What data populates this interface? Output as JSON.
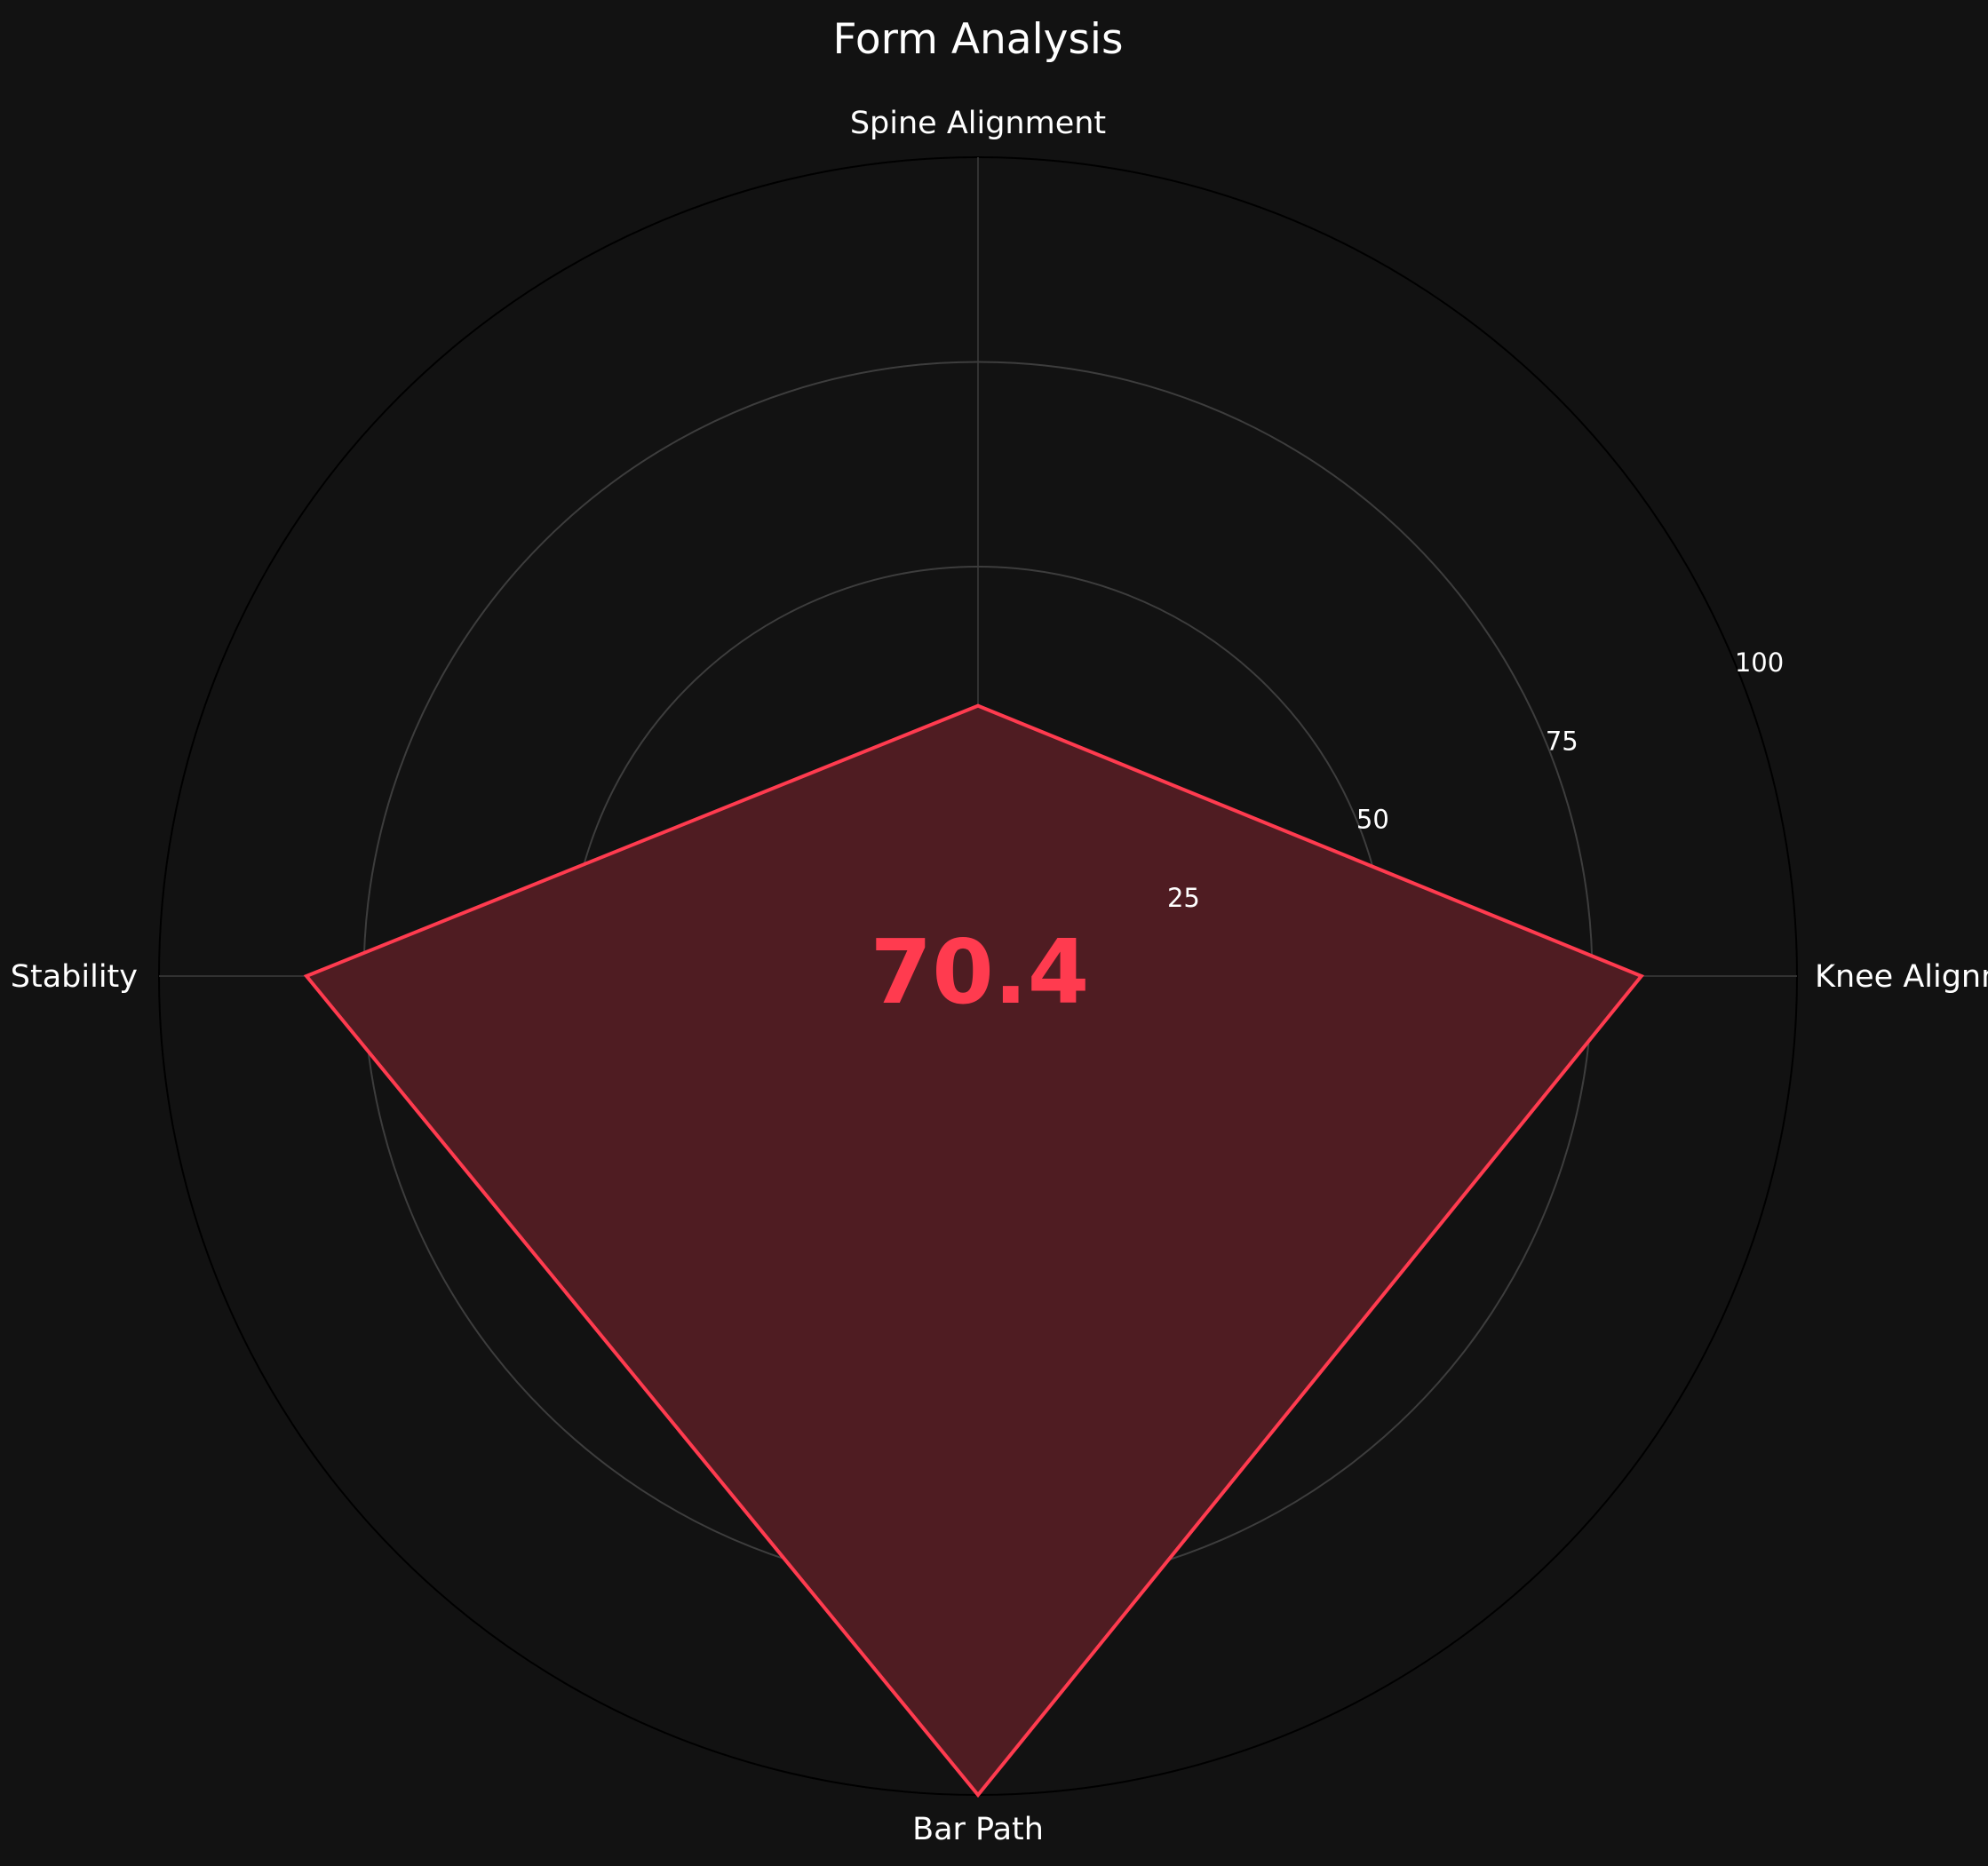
{
  "chart_data": {
    "type": "radar",
    "title": "Form Analysis",
    "categories": [
      "Knee Alignment",
      "Spine Alignment",
      "Hip Stability",
      "Bar Path"
    ],
    "series": [
      {
        "values": [
          81,
          33,
          82,
          100
        ]
      }
    ],
    "rlim": [
      0,
      100
    ],
    "rticks": [
      25,
      50,
      75,
      100
    ],
    "rtick_labels": [
      "25",
      "50",
      "75",
      "100"
    ],
    "overall_score": "70.4",
    "grid": true,
    "colors": {
      "background": "#121212",
      "line": "#ff3b4f",
      "fill": "#4f1c22",
      "grid": "#3d3d3d",
      "outer_ring": "#000000",
      "text": "#ffffff",
      "score": "#ff3b4f"
    }
  }
}
